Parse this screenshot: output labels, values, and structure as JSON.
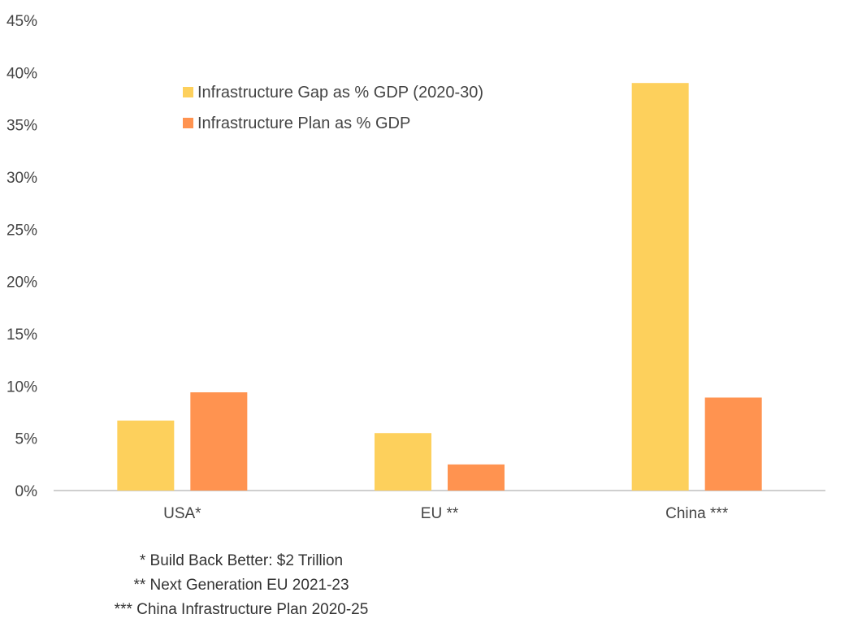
{
  "chart_data": {
    "type": "bar",
    "categories": [
      "USA*",
      "EU **",
      "China ***"
    ],
    "series": [
      {
        "name": "Infrastructure Gap as % GDP (2020-30)",
        "values": [
          6.7,
          5.5,
          39.0
        ],
        "color": "#FDD05C"
      },
      {
        "name": "Infrastructure Plan as % GDP",
        "values": [
          9.4,
          2.5,
          8.9
        ],
        "color": "#FF9350"
      }
    ],
    "ylim": [
      0,
      45
    ],
    "yticks": [
      "0%",
      "5%",
      "10%",
      "15%",
      "20%",
      "25%",
      "30%",
      "35%",
      "40%",
      "45%"
    ],
    "grid": false,
    "legend_position": "top-left",
    "notes": [
      "* Build Back Better: $2 Trillion",
      "** Next Generation EU 2021-23",
      "*** China Infrastructure Plan 2020-25"
    ]
  }
}
